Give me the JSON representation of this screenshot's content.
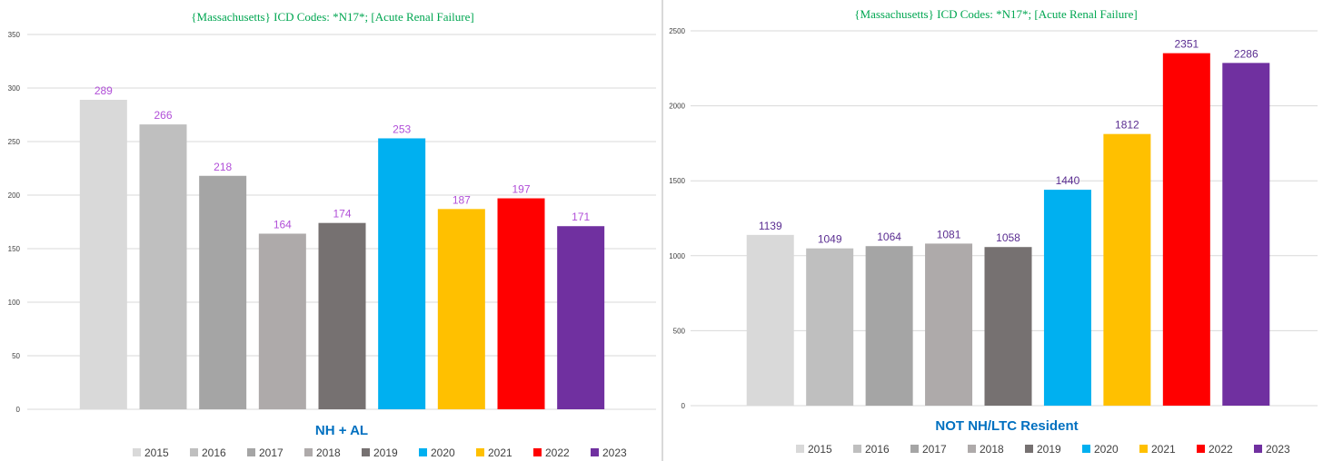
{
  "chart_data": [
    {
      "type": "bar",
      "title": "{Massachusetts}   ICD Codes:  *N17*;  [Acute Renal Failure]",
      "xlabel": "NH + AL",
      "ylabel": "",
      "ylim": [
        0,
        350
      ],
      "yticks": [
        0,
        50,
        100,
        150,
        200,
        250,
        300,
        350
      ],
      "grid": true,
      "legend_position": "bottom",
      "categories": [
        "2015",
        "2016",
        "2017",
        "2018",
        "2019",
        "2020",
        "2021",
        "2022",
        "2023"
      ],
      "values": [
        289,
        266,
        218,
        164,
        174,
        253,
        187,
        197,
        171
      ],
      "colors": [
        "#d9d9d9",
        "#bfbfbf",
        "#a5a5a5",
        "#aeaaaa",
        "#767171",
        "#00b0f0",
        "#ffc000",
        "#ff0000",
        "#7030a0"
      ],
      "data_label_color": "#b14fd8"
    },
    {
      "type": "bar",
      "title": "{Massachusetts}   ICD Codes:  *N17*;  [Acute Renal Failure]",
      "xlabel": "NOT NH/LTC Resident",
      "ylabel": "",
      "ylim": [
        0,
        2500
      ],
      "yticks": [
        0,
        500,
        1000,
        1500,
        2000,
        2500
      ],
      "grid": true,
      "legend_position": "bottom",
      "categories": [
        "2015",
        "2016",
        "2017",
        "2018",
        "2019",
        "2020",
        "2021",
        "2022",
        "2023"
      ],
      "values": [
        1139,
        1049,
        1064,
        1081,
        1058,
        1440,
        1812,
        2351,
        2286
      ],
      "colors": [
        "#d9d9d9",
        "#bfbfbf",
        "#a5a5a5",
        "#aeaaaa",
        "#767171",
        "#00b0f0",
        "#ffc000",
        "#ff0000",
        "#7030a0"
      ],
      "data_label_color": "#5a2d91"
    }
  ]
}
